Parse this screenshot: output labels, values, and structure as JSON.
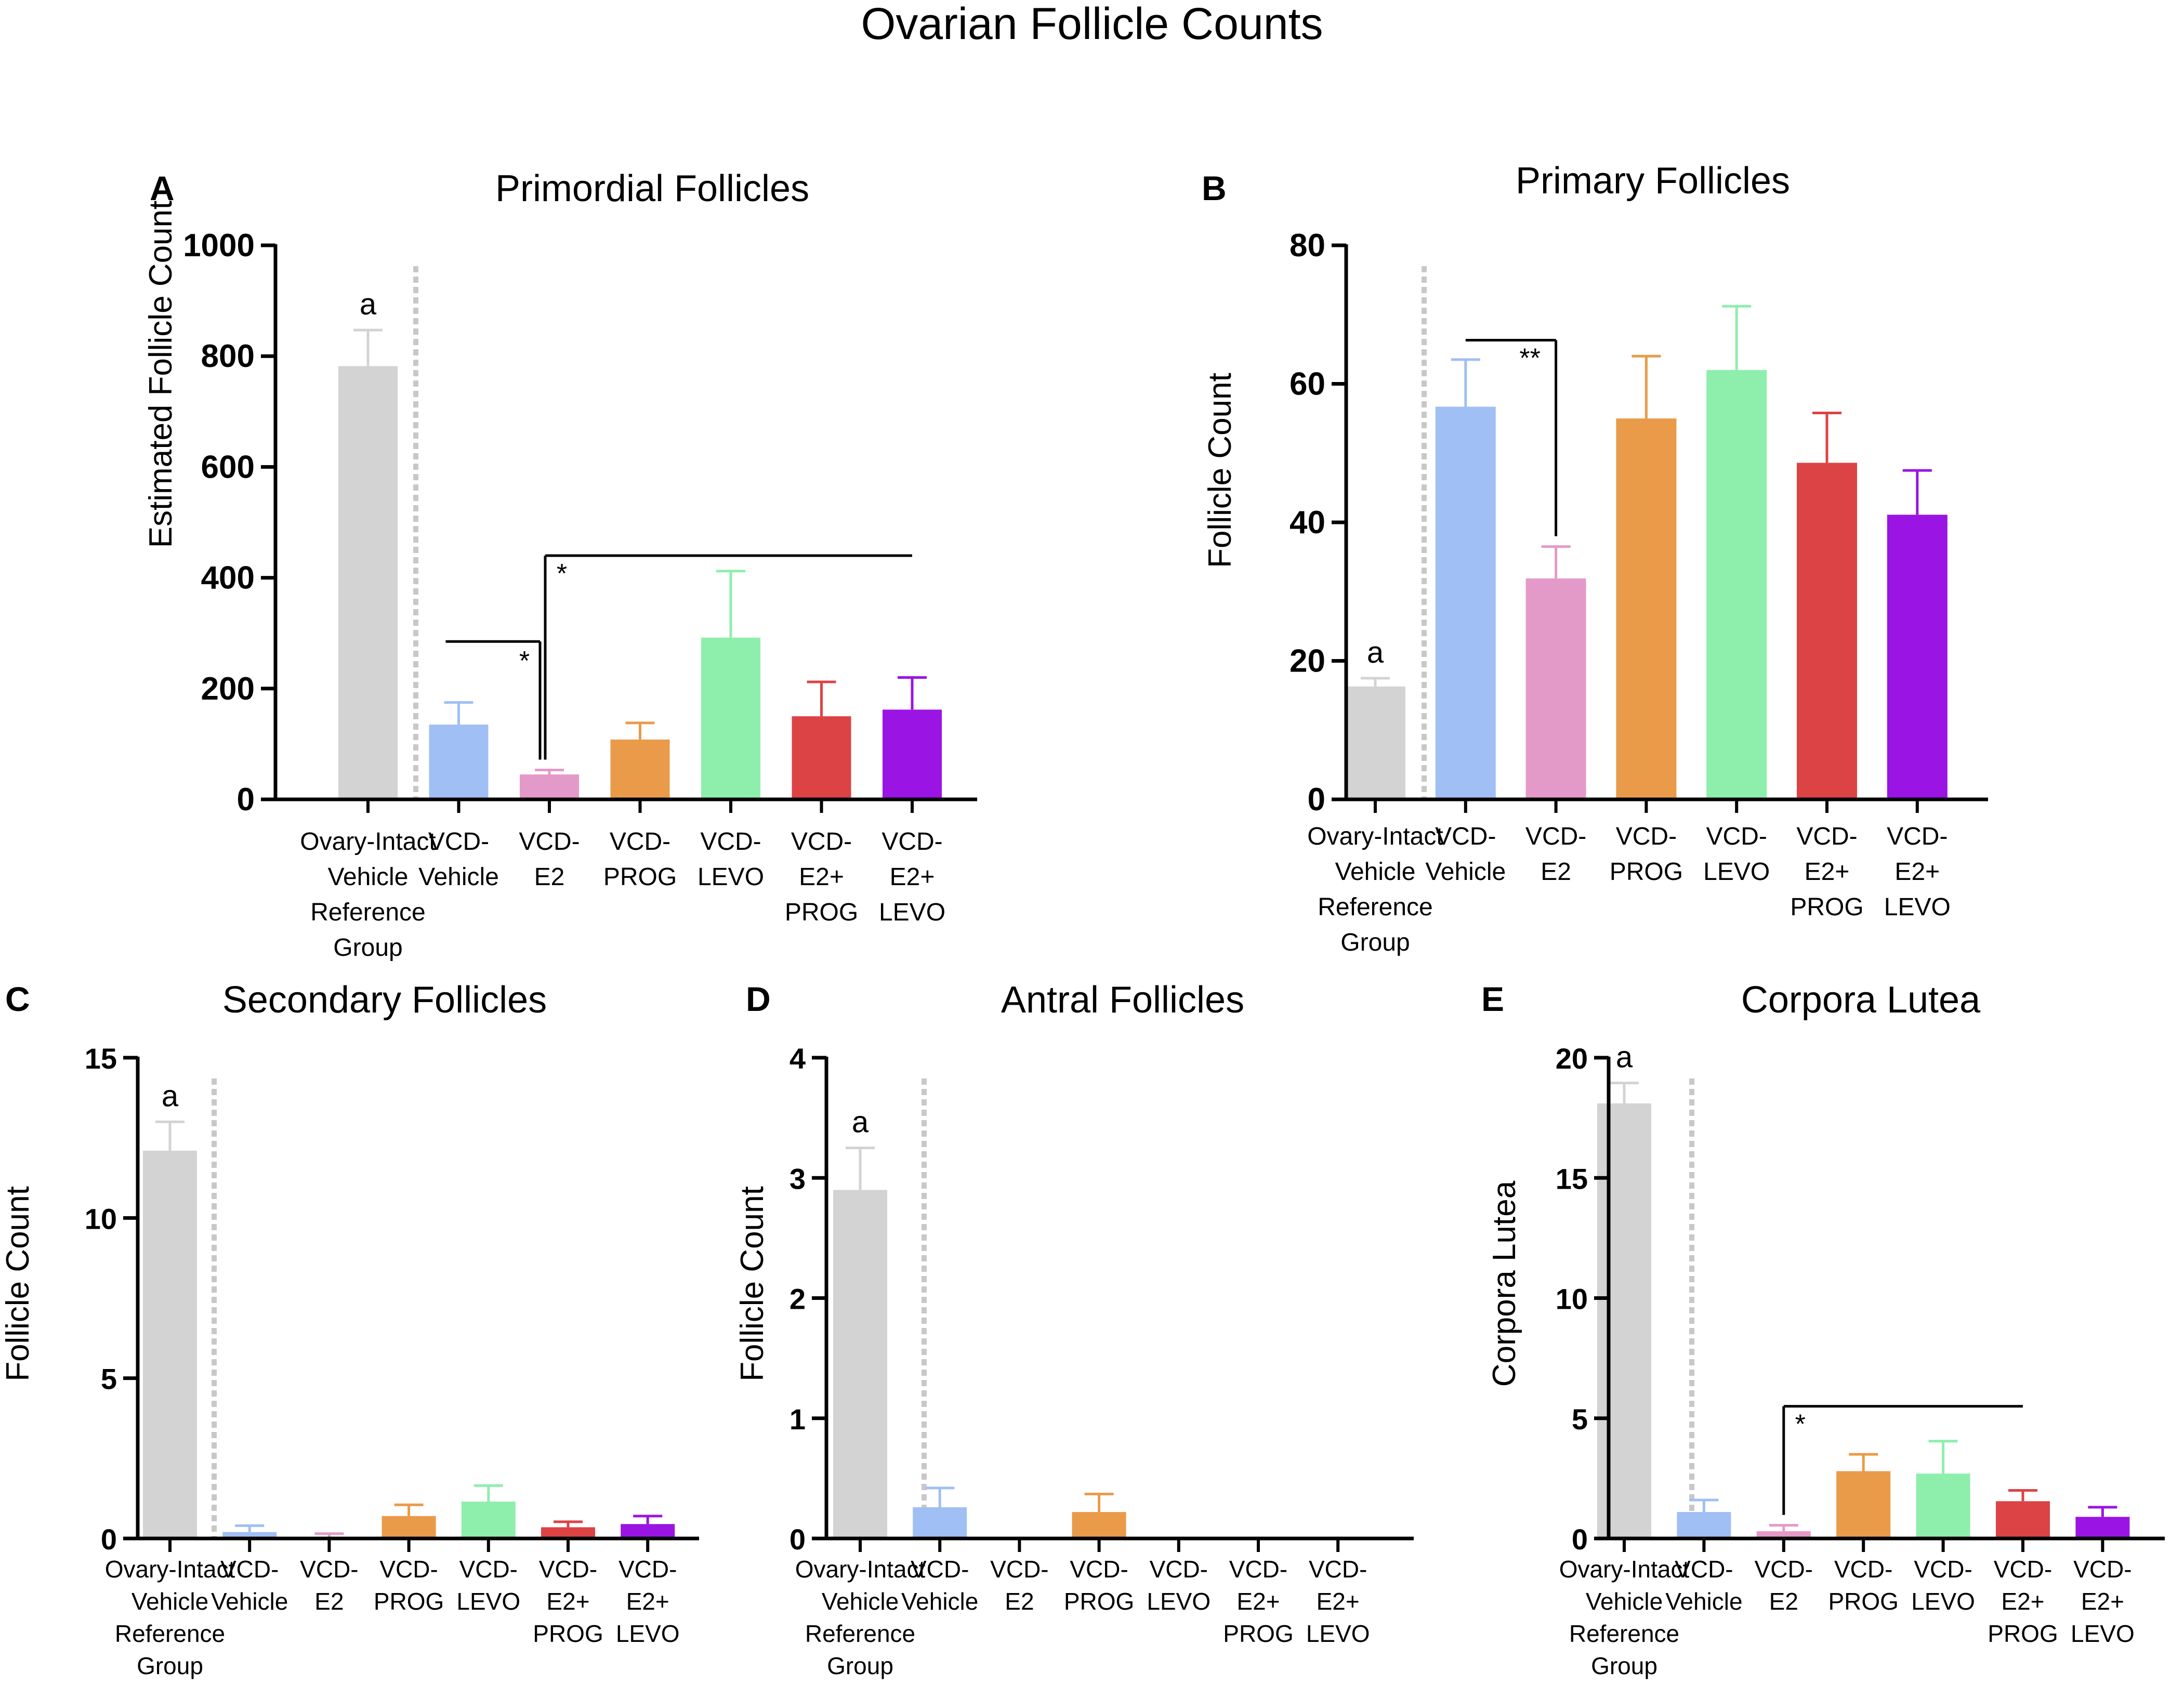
{
  "figure_title": "Ovarian Follicle Counts",
  "colors": {
    "reference": "#d3d3d3",
    "vcd_vehicle": "#a0bff4",
    "vcd_e2": "#e49ac8",
    "vcd_prog": "#e99b49",
    "vcd_levo": "#8eefac",
    "vcd_e2_prog": "#dc4345",
    "vcd_e2_levo": "#9a14e3",
    "divider": "#c8c8c8",
    "axis": "#000000"
  },
  "chart_data": [
    {
      "panel": "A",
      "type": "bar",
      "title": "Primordial Follicles",
      "ylabel": "Estimated Follicle Count",
      "xlabel": "",
      "ylim": [
        0,
        1000
      ],
      "yticks": [
        "0",
        "200",
        "400",
        "600",
        "800",
        "1000"
      ],
      "categories": [
        [
          "Ovary-Intact",
          "Vehicle",
          "Reference",
          "Group"
        ],
        [
          "VCD-",
          "Vehicle"
        ],
        [
          "VCD-",
          "E2"
        ],
        [
          "VCD-",
          "PROG"
        ],
        [
          "VCD-",
          "LEVO"
        ],
        [
          "VCD-",
          "E2+",
          "PROG"
        ],
        [
          "VCD-",
          "E2+",
          "LEVO"
        ]
      ],
      "values": [
        782,
        135,
        45,
        108,
        292,
        150,
        162
      ],
      "errors": [
        65,
        40,
        8,
        30,
        120,
        62,
        58
      ],
      "annotations": [
        {
          "bar": 0,
          "text": "a"
        }
      ],
      "comparisons": [
        {
          "from": 1,
          "to": 2,
          "level": 285,
          "label": "*"
        },
        {
          "from": 2,
          "to": 6,
          "level": 440,
          "label": "*"
        }
      ]
    },
    {
      "panel": "B",
      "type": "bar",
      "title": "Primary Follicles",
      "ylabel": "Follicle Count",
      "xlabel": "",
      "ylim": [
        0,
        80
      ],
      "yticks": [
        "0",
        "20",
        "40",
        "60",
        "80"
      ],
      "categories": [
        [
          "Ovary-Intact",
          "Vehicle",
          "Reference",
          "Group"
        ],
        [
          "VCD-",
          "Vehicle"
        ],
        [
          "VCD-",
          "E2"
        ],
        [
          "VCD-",
          "PROG"
        ],
        [
          "VCD-",
          "LEVO"
        ],
        [
          "VCD-",
          "E2+",
          "PROG"
        ],
        [
          "VCD-",
          "E2+",
          "LEVO"
        ]
      ],
      "values": [
        16.3,
        56.7,
        31.9,
        55.0,
        62.0,
        48.6,
        41.1
      ],
      "errors": [
        1.2,
        6.8,
        4.6,
        9.0,
        9.2,
        7.2,
        6.4
      ],
      "annotations": [
        {
          "bar": 0,
          "text": "a"
        }
      ],
      "comparisons": [
        {
          "from": 1,
          "to": 2,
          "level": 66.3,
          "label": "**"
        }
      ]
    },
    {
      "panel": "C",
      "type": "bar",
      "title": "Secondary Follicles",
      "ylabel": "Follicle Count",
      "xlabel": "",
      "ylim": [
        0,
        15
      ],
      "yticks": [
        "0",
        "5",
        "10",
        "15"
      ],
      "categories": [
        [
          "Ovary-Intact",
          "Vehicle",
          "Reference",
          "Group"
        ],
        [
          "VCD-",
          "Vehicle"
        ],
        [
          "VCD-",
          "E2"
        ],
        [
          "VCD-",
          "PROG"
        ],
        [
          "VCD-",
          "LEVO"
        ],
        [
          "VCD-",
          "E2+",
          "PROG"
        ],
        [
          "VCD-",
          "E2+",
          "LEVO"
        ]
      ],
      "values": [
        12.1,
        0.2,
        0.0,
        0.7,
        1.15,
        0.35,
        0.45
      ],
      "errors": [
        0.9,
        0.2,
        0.15,
        0.35,
        0.5,
        0.17,
        0.25
      ],
      "annotations": [
        {
          "bar": 0,
          "text": "a"
        }
      ],
      "comparisons": []
    },
    {
      "panel": "D",
      "type": "bar",
      "title": "Antral Follicles",
      "ylabel": "Follicle Count",
      "xlabel": "",
      "ylim": [
        0,
        4
      ],
      "yticks": [
        "0",
        "1",
        "2",
        "3",
        "4"
      ],
      "categories": [
        [
          "Ovary-Intact",
          "Vehicle",
          "Reference",
          "Group"
        ],
        [
          "VCD-",
          "Vehicle"
        ],
        [
          "VCD-",
          "E2"
        ],
        [
          "VCD-",
          "PROG"
        ],
        [
          "VCD-",
          "LEVO"
        ],
        [
          "VCD-",
          "E2+",
          "PROG"
        ],
        [
          "VCD-",
          "E2+",
          "LEVO"
        ]
      ],
      "values": [
        2.9,
        0.26,
        0.0,
        0.22,
        0.0,
        0.0,
        0.0
      ],
      "errors": [
        0.35,
        0.16,
        0.0,
        0.15,
        0.0,
        0.0,
        0.0
      ],
      "annotations": [
        {
          "bar": 0,
          "text": "a"
        }
      ],
      "comparisons": []
    },
    {
      "panel": "E",
      "type": "bar",
      "title": "Corpora Lutea",
      "ylabel": "Corpora Lutea",
      "xlabel": "",
      "ylim": [
        0,
        20
      ],
      "yticks": [
        "0",
        "5",
        "10",
        "15",
        "20"
      ],
      "categories": [
        [
          "Ovary-Intact",
          "Vehicle",
          "Reference",
          "Group"
        ],
        [
          "VCD-",
          "Vehicle"
        ],
        [
          "VCD-",
          "E2"
        ],
        [
          "VCD-",
          "PROG"
        ],
        [
          "VCD-",
          "LEVO"
        ],
        [
          "VCD-",
          "E2+",
          "PROG"
        ],
        [
          "VCD-",
          "E2+",
          "LEVO"
        ]
      ],
      "values": [
        18.1,
        1.1,
        0.3,
        2.8,
        2.7,
        1.55,
        0.9
      ],
      "errors": [
        0.85,
        0.5,
        0.25,
        0.7,
        1.35,
        0.45,
        0.4
      ],
      "annotations": [
        {
          "bar": 0,
          "text": "a"
        }
      ],
      "comparisons": [
        {
          "from": 2,
          "to": 5,
          "level": 5.5,
          "label": "*"
        }
      ]
    }
  ]
}
